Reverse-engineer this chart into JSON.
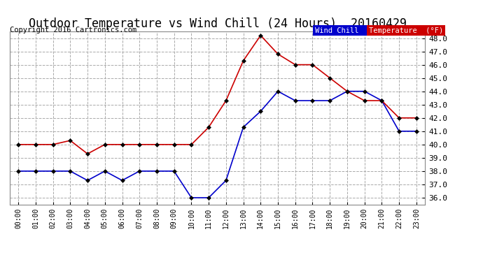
{
  "title": "Outdoor Temperature vs Wind Chill (24 Hours)  20160429",
  "copyright": "Copyright 2016 Cartronics.com",
  "ylim": [
    35.5,
    48.5
  ],
  "yticks": [
    36.0,
    37.0,
    38.0,
    39.0,
    40.0,
    41.0,
    42.0,
    43.0,
    44.0,
    45.0,
    46.0,
    47.0,
    48.0
  ],
  "hours": [
    "00:00",
    "01:00",
    "02:00",
    "03:00",
    "04:00",
    "05:00",
    "06:00",
    "07:00",
    "08:00",
    "09:00",
    "10:00",
    "11:00",
    "12:00",
    "13:00",
    "14:00",
    "15:00",
    "16:00",
    "17:00",
    "18:00",
    "19:00",
    "20:00",
    "21:00",
    "22:00",
    "23:00"
  ],
  "wind_chill": [
    38.0,
    38.0,
    38.0,
    38.0,
    37.3,
    38.0,
    37.3,
    38.0,
    38.0,
    38.0,
    36.0,
    36.0,
    37.3,
    41.3,
    42.5,
    44.0,
    43.3,
    43.3,
    43.3,
    44.0,
    44.0,
    43.3,
    41.0,
    41.0
  ],
  "temperature": [
    40.0,
    40.0,
    40.0,
    40.3,
    39.3,
    40.0,
    40.0,
    40.0,
    40.0,
    40.0,
    40.0,
    41.3,
    43.3,
    46.3,
    48.2,
    46.8,
    46.0,
    46.0,
    45.0,
    44.0,
    43.3,
    43.3,
    42.0,
    42.0
  ],
  "wind_chill_color": "#0000cc",
  "temperature_color": "#cc0000",
  "background_color": "#ffffff",
  "grid_color": "#aaaaaa",
  "marker": "D",
  "marker_size": 3,
  "legend_wc_bg": "#0000cc",
  "legend_t_bg": "#cc0000",
  "legend_text_color": "#ffffff",
  "title_fontsize": 12,
  "copyright_fontsize": 7.5,
  "tick_fontsize": 8,
  "xtick_fontsize": 7
}
